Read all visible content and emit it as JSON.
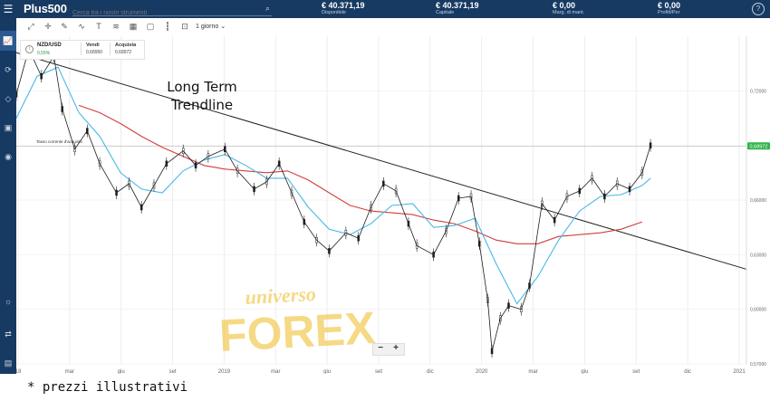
{
  "header": {
    "logo": "Plus500",
    "search_placeholder": "Cerca tra i nostri strumenti",
    "stats": [
      {
        "value": "€ 40.371,19",
        "label": "Disponibile"
      },
      {
        "value": "€ 40.371,19",
        "label": "Capitale"
      },
      {
        "value": "€ 0,00",
        "label": "Marg. di mant."
      },
      {
        "value": "€ 0,00",
        "label": "Profitt/Per"
      }
    ],
    "help": "?"
  },
  "toolbar": {
    "period": "1 giorno ⌄"
  },
  "infobox": {
    "symbol": "NZD/USD",
    "change": "0,55%",
    "sell_label": "Vendi",
    "sell_price": "0,68950",
    "buy_label": "Acquista",
    "buy_price": "0,68972"
  },
  "zoom": {
    "minus": "−",
    "plus": "+"
  },
  "caption": "* prezzi illustrativi",
  "chart_data": {
    "type": "line",
    "instrument": "NZD/USD",
    "timeframe": "1 giorno",
    "x_ticks": [
      "18",
      "mar",
      "giu",
      "set",
      "2019",
      "mar",
      "giu",
      "set",
      "dic",
      "2020",
      "mar",
      "giu",
      "set",
      "dic",
      "2021"
    ],
    "y_ticks": [
      "0,72000",
      "0,68972",
      "0,66000",
      "0,63000",
      "0,60000",
      "0,57000"
    ],
    "current_price": "0,68972",
    "current_price_line_label": "Tasso corrente d'acquisto",
    "annotation_text": [
      "Long Term",
      "Trendline"
    ],
    "watermark_text": [
      "universo",
      "FOREX"
    ],
    "price_series": [
      {
        "x": 0.0,
        "y": 0.718
      },
      {
        "x": 0.03,
        "y": 0.743
      },
      {
        "x": 0.06,
        "y": 0.728
      },
      {
        "x": 0.09,
        "y": 0.739
      },
      {
        "x": 0.11,
        "y": 0.71
      },
      {
        "x": 0.14,
        "y": 0.688
      },
      {
        "x": 0.17,
        "y": 0.698
      },
      {
        "x": 0.2,
        "y": 0.68
      },
      {
        "x": 0.24,
        "y": 0.664
      },
      {
        "x": 0.27,
        "y": 0.669
      },
      {
        "x": 0.3,
        "y": 0.656
      },
      {
        "x": 0.33,
        "y": 0.668
      },
      {
        "x": 0.36,
        "y": 0.68
      },
      {
        "x": 0.4,
        "y": 0.687
      },
      {
        "x": 0.43,
        "y": 0.679
      },
      {
        "x": 0.46,
        "y": 0.684
      },
      {
        "x": 0.5,
        "y": 0.688
      },
      {
        "x": 0.53,
        "y": 0.676
      },
      {
        "x": 0.57,
        "y": 0.666
      },
      {
        "x": 0.6,
        "y": 0.67
      },
      {
        "x": 0.63,
        "y": 0.68
      },
      {
        "x": 0.66,
        "y": 0.664
      },
      {
        "x": 0.69,
        "y": 0.648
      },
      {
        "x": 0.72,
        "y": 0.638
      },
      {
        "x": 0.75,
        "y": 0.632
      },
      {
        "x": 0.79,
        "y": 0.642
      },
      {
        "x": 0.82,
        "y": 0.639
      },
      {
        "x": 0.85,
        "y": 0.656
      },
      {
        "x": 0.88,
        "y": 0.669
      },
      {
        "x": 0.91,
        "y": 0.665
      },
      {
        "x": 0.94,
        "y": 0.647
      },
      {
        "x": 0.96,
        "y": 0.635
      },
      {
        "x": 1.0,
        "y": 0.63
      },
      {
        "x": 1.03,
        "y": 0.643
      },
      {
        "x": 1.06,
        "y": 0.661
      },
      {
        "x": 1.09,
        "y": 0.662
      },
      {
        "x": 1.11,
        "y": 0.636
      },
      {
        "x": 1.13,
        "y": 0.605
      },
      {
        "x": 1.14,
        "y": 0.577
      },
      {
        "x": 1.16,
        "y": 0.595
      },
      {
        "x": 1.18,
        "y": 0.602
      },
      {
        "x": 1.21,
        "y": 0.6
      },
      {
        "x": 1.23,
        "y": 0.613
      },
      {
        "x": 1.26,
        "y": 0.658
      },
      {
        "x": 1.29,
        "y": 0.649
      },
      {
        "x": 1.32,
        "y": 0.662
      },
      {
        "x": 1.35,
        "y": 0.665
      },
      {
        "x": 1.38,
        "y": 0.672
      },
      {
        "x": 1.41,
        "y": 0.662
      },
      {
        "x": 1.44,
        "y": 0.669
      },
      {
        "x": 1.47,
        "y": 0.666
      },
      {
        "x": 1.5,
        "y": 0.675
      },
      {
        "x": 1.52,
        "y": 0.69
      }
    ],
    "ma_fast": [
      {
        "x": 0.0,
        "y": 0.705
      },
      {
        "x": 0.05,
        "y": 0.728
      },
      {
        "x": 0.1,
        "y": 0.733
      },
      {
        "x": 0.15,
        "y": 0.708
      },
      {
        "x": 0.2,
        "y": 0.695
      },
      {
        "x": 0.25,
        "y": 0.675
      },
      {
        "x": 0.3,
        "y": 0.666
      },
      {
        "x": 0.35,
        "y": 0.664
      },
      {
        "x": 0.4,
        "y": 0.676
      },
      {
        "x": 0.45,
        "y": 0.682
      },
      {
        "x": 0.5,
        "y": 0.685
      },
      {
        "x": 0.55,
        "y": 0.679
      },
      {
        "x": 0.6,
        "y": 0.672
      },
      {
        "x": 0.65,
        "y": 0.672
      },
      {
        "x": 0.7,
        "y": 0.656
      },
      {
        "x": 0.75,
        "y": 0.644
      },
      {
        "x": 0.8,
        "y": 0.641
      },
      {
        "x": 0.85,
        "y": 0.647
      },
      {
        "x": 0.9,
        "y": 0.657
      },
      {
        "x": 0.95,
        "y": 0.658
      },
      {
        "x": 1.0,
        "y": 0.645
      },
      {
        "x": 1.05,
        "y": 0.646
      },
      {
        "x": 1.1,
        "y": 0.65
      },
      {
        "x": 1.15,
        "y": 0.625
      },
      {
        "x": 1.2,
        "y": 0.603
      },
      {
        "x": 1.25,
        "y": 0.618
      },
      {
        "x": 1.3,
        "y": 0.638
      },
      {
        "x": 1.35,
        "y": 0.654
      },
      {
        "x": 1.4,
        "y": 0.662
      },
      {
        "x": 1.45,
        "y": 0.663
      },
      {
        "x": 1.5,
        "y": 0.668
      },
      {
        "x": 1.52,
        "y": 0.672
      }
    ],
    "ma_slow": [
      {
        "x": 0.15,
        "y": 0.712
      },
      {
        "x": 0.2,
        "y": 0.708
      },
      {
        "x": 0.25,
        "y": 0.702
      },
      {
        "x": 0.3,
        "y": 0.695
      },
      {
        "x": 0.35,
        "y": 0.689
      },
      {
        "x": 0.4,
        "y": 0.684
      },
      {
        "x": 0.45,
        "y": 0.679
      },
      {
        "x": 0.5,
        "y": 0.677
      },
      {
        "x": 0.55,
        "y": 0.676
      },
      {
        "x": 0.6,
        "y": 0.675
      },
      {
        "x": 0.65,
        "y": 0.676
      },
      {
        "x": 0.7,
        "y": 0.671
      },
      {
        "x": 0.75,
        "y": 0.664
      },
      {
        "x": 0.8,
        "y": 0.657
      },
      {
        "x": 0.85,
        "y": 0.654
      },
      {
        "x": 0.9,
        "y": 0.653
      },
      {
        "x": 0.95,
        "y": 0.652
      },
      {
        "x": 1.0,
        "y": 0.649
      },
      {
        "x": 1.05,
        "y": 0.647
      },
      {
        "x": 1.1,
        "y": 0.643
      },
      {
        "x": 1.15,
        "y": 0.638
      },
      {
        "x": 1.2,
        "y": 0.636
      },
      {
        "x": 1.25,
        "y": 0.636
      },
      {
        "x": 1.3,
        "y": 0.64
      },
      {
        "x": 1.35,
        "y": 0.641
      },
      {
        "x": 1.4,
        "y": 0.642
      },
      {
        "x": 1.45,
        "y": 0.644
      },
      {
        "x": 1.5,
        "y": 0.648
      }
    ],
    "trendline": [
      {
        "x": 0.0,
        "y": 0.741
      },
      {
        "x": 1.75,
        "y": 0.622
      }
    ],
    "y_range": [
      0.57,
      0.75
    ],
    "x_range": [
      0.0,
      1.75
    ],
    "colors": {
      "price": "#1e1e1e",
      "ma_fast": "#48b8e8",
      "ma_slow": "#d23c3c",
      "trendline": "#222222",
      "current_price_badge": "#2fb54a",
      "watermark": "#f2cd5c"
    }
  }
}
